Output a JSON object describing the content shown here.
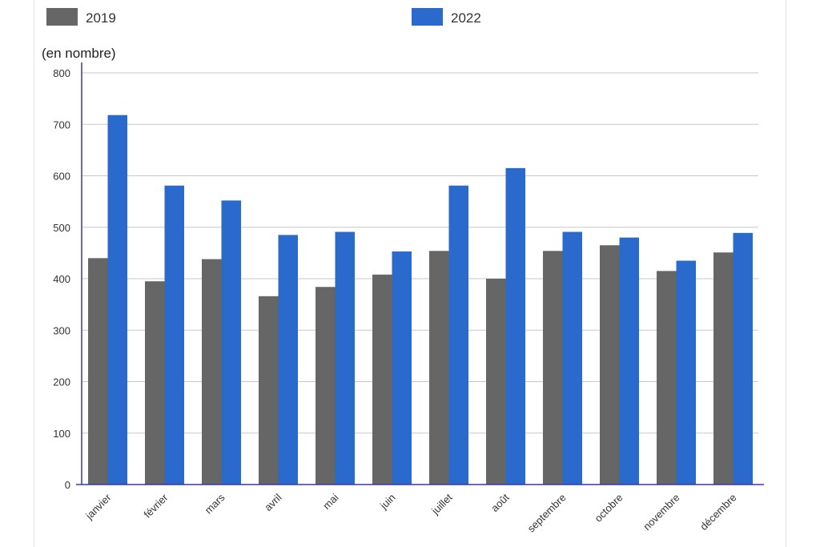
{
  "chart_data": {
    "type": "bar",
    "unit_label": "(en nombre)",
    "categories": [
      "janvier",
      "février",
      "mars",
      "avril",
      "mai",
      "juin",
      "juillet",
      "août",
      "septembre",
      "octobre",
      "novembre",
      "décembre"
    ],
    "series": [
      {
        "name": "2019",
        "color": "#666666",
        "values": [
          440,
          395,
          438,
          366,
          384,
          408,
          454,
          400,
          454,
          465,
          415,
          451
        ]
      },
      {
        "name": "2022",
        "color": "#2a6acd",
        "values": [
          718,
          581,
          552,
          485,
          491,
          453,
          581,
          615,
          491,
          480,
          435,
          489
        ]
      }
    ],
    "ylim": [
      0,
      800
    ],
    "yticks": [
      0,
      100,
      200,
      300,
      400,
      500,
      600,
      700,
      800
    ],
    "grid": true,
    "legend_position": "top"
  }
}
